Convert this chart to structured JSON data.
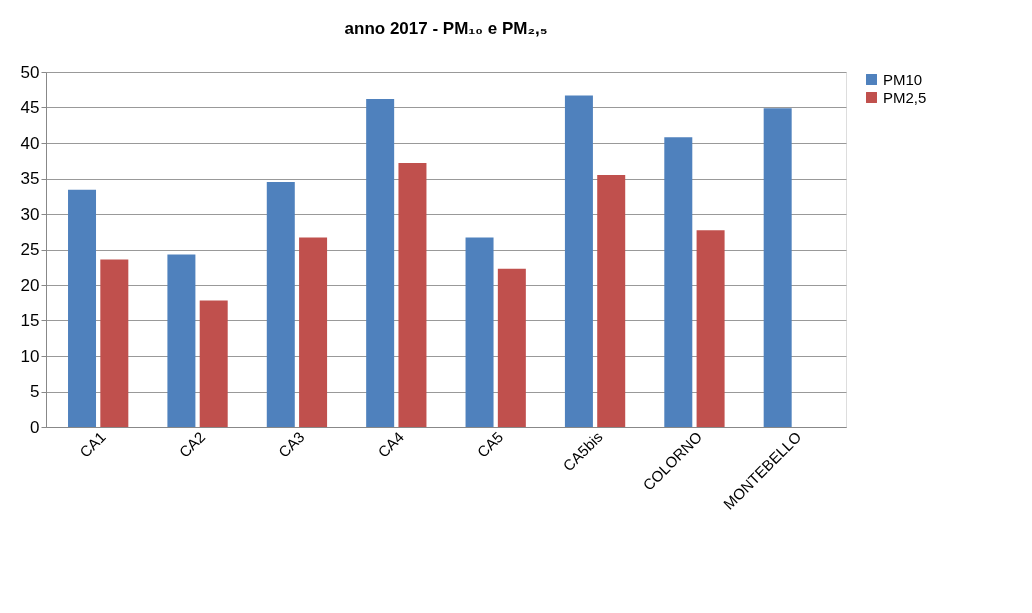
{
  "chart_data": {
    "type": "bar",
    "title": "anno 2017 - PM₁₀ e PM₂,₅",
    "categories": [
      "CA1",
      "CA2",
      "CA3",
      "CA4",
      "CA5",
      "CA5bis",
      "COLORNO",
      "MONTEBELLO"
    ],
    "series": [
      {
        "name": "PM10",
        "color": "#4f81bd",
        "values": [
          33.4,
          24.3,
          34.5,
          46.2,
          26.7,
          46.7,
          40.8,
          44.9
        ]
      },
      {
        "name": "PM2,5",
        "color": "#c0504d",
        "values": [
          23.6,
          17.8,
          26.7,
          37.2,
          22.3,
          35.5,
          27.7,
          null
        ]
      }
    ],
    "ylim": [
      0,
      50
    ],
    "yticks": [
      0,
      5,
      10,
      15,
      20,
      25,
      30,
      35,
      40,
      45,
      50
    ],
    "grid": "y",
    "legend": "right"
  }
}
